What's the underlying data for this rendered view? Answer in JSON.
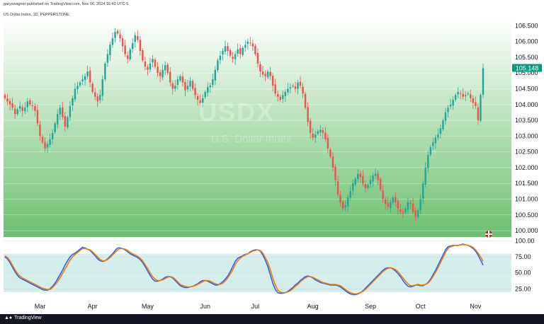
{
  "header": {
    "publisher": "garyswagner published on TradingView.com, Nov 06, 2024 15:43 UTC-5",
    "symbol_line": "US Dollar Index, 1D, PEPPERSTONE"
  },
  "watermark": {
    "symbol": "USDX",
    "name": "U.S. Dollar Index"
  },
  "footer": {
    "brand": "TradingView",
    "logo": "tradingview-logo-icon"
  },
  "colors": {
    "up": "#26a69a",
    "down": "#ef5350",
    "k_line": "#2962ff",
    "d_line": "#f57c00",
    "price_label": "#089981",
    "footer": "#131722"
  },
  "chart_data": [
    {
      "type": "candlestick",
      "title": "",
      "ylim": [
        99.8,
        106.8
      ],
      "y_ticks": [
        "106.500",
        "106.000",
        "105.500",
        "105.000",
        "104.500",
        "104.000",
        "103.500",
        "103.000",
        "102.500",
        "102.000",
        "101.500",
        "101.000",
        "100.500",
        "100.000"
      ],
      "y_tick_values": [
        106.5,
        106.0,
        105.5,
        105.0,
        104.5,
        104.0,
        103.5,
        103.0,
        102.5,
        102.0,
        101.5,
        101.0,
        100.5,
        100.0
      ],
      "x_labels": [
        "Mar",
        "Apr",
        "May",
        "Jun",
        "Jul",
        "Aug",
        "Sep",
        "Oct",
        "Nov"
      ],
      "last_price_label": "105.148",
      "closes": [
        104.2,
        104.1,
        104.0,
        103.9,
        103.7,
        103.85,
        103.95,
        103.8,
        103.9,
        104.1,
        104.0,
        103.95,
        103.8,
        103.4,
        103.0,
        102.8,
        102.6,
        102.75,
        102.9,
        103.1,
        103.4,
        103.7,
        103.9,
        103.6,
        103.3,
        103.6,
        103.95,
        104.2,
        104.5,
        104.6,
        104.7,
        104.8,
        104.9,
        105.05,
        104.7,
        104.4,
        104.25,
        104.1,
        104.3,
        104.8,
        105.3,
        105.6,
        105.9,
        106.1,
        106.3,
        106.25,
        106.1,
        105.85,
        105.6,
        105.45,
        105.75,
        105.95,
        106.2,
        106.05,
        105.7,
        105.4,
        105.2,
        105.1,
        105.3,
        105.45,
        105.2,
        105.0,
        104.9,
        105.1,
        105.25,
        105.0,
        104.7,
        104.5,
        104.6,
        104.8,
        104.9,
        104.7,
        104.45,
        104.6,
        104.75,
        104.5,
        104.3,
        104.15,
        104.05,
        104.2,
        104.4,
        104.55,
        104.6,
        104.8,
        105.1,
        105.4,
        105.55,
        105.7,
        105.85,
        105.7,
        105.55,
        105.45,
        105.6,
        105.75,
        105.6,
        105.8,
        105.9,
        106.0,
        105.95,
        105.85,
        105.6,
        105.3,
        105.05,
        104.95,
        104.9,
        105.05,
        104.9,
        104.6,
        104.35,
        104.25,
        104.15,
        104.3,
        104.4,
        104.5,
        104.55,
        104.6,
        104.5,
        104.7,
        104.6,
        104.35,
        103.9,
        103.45,
        103.1,
        102.95,
        103.05,
        103.15,
        103.2,
        103.1,
        102.9,
        102.6,
        102.35,
        102.0,
        101.6,
        101.15,
        100.9,
        100.7,
        100.8,
        101.05,
        101.25,
        101.5,
        101.65,
        101.8,
        101.7,
        101.5,
        101.35,
        101.45,
        101.6,
        101.75,
        101.8,
        101.6,
        101.3,
        101.0,
        100.85,
        100.75,
        100.9,
        101.05,
        100.9,
        100.7,
        100.6,
        100.55,
        100.7,
        100.9,
        100.85,
        100.6,
        100.45,
        100.65,
        101.0,
        101.5,
        102.0,
        102.4,
        102.65,
        102.8,
        102.95,
        103.05,
        103.25,
        103.5,
        103.75,
        103.9,
        104.0,
        104.15,
        104.3,
        104.4,
        104.35,
        104.25,
        104.3,
        104.35,
        104.2,
        104.05,
        103.95,
        103.5,
        104.3,
        105.15
      ],
      "notes": "closes are approximate daily closes read off the chart (Feb through Nov 6, 2024)"
    },
    {
      "type": "line",
      "title": "",
      "ylim": [
        12,
        104
      ],
      "y_ticks": [
        "100.00",
        "75.00",
        "50.00",
        "25.00"
      ],
      "y_tick_values": [
        100,
        75,
        50,
        25
      ],
      "band": [
        20,
        80
      ],
      "series": [
        {
          "values": [
            75,
            72,
            66,
            59,
            52,
            46,
            42,
            40,
            38,
            36,
            34,
            32,
            30,
            28,
            26,
            24,
            23,
            23,
            25,
            29,
            34,
            40,
            47,
            54,
            62,
            69,
            75,
            79,
            81,
            84,
            87,
            90,
            89,
            87,
            85,
            81,
            77,
            72,
            69,
            68,
            69,
            72,
            76,
            80,
            85,
            89,
            89,
            88,
            86,
            83,
            80,
            78,
            76,
            74,
            71,
            66,
            60,
            53,
            46,
            40,
            37,
            37,
            38,
            40,
            43,
            44,
            44,
            42,
            38,
            34,
            30,
            28,
            27,
            27,
            28,
            29,
            31,
            33,
            36,
            38,
            38,
            37,
            35,
            33,
            31,
            31,
            33,
            36,
            40,
            45,
            52,
            60,
            68,
            73,
            75,
            77,
            79,
            80,
            83,
            85,
            86,
            86,
            84,
            78,
            70,
            60,
            47,
            34,
            24,
            19,
            18,
            18,
            19,
            21,
            24,
            27,
            31,
            34,
            38,
            41,
            44,
            45,
            44,
            42,
            39,
            37,
            35,
            34,
            33,
            32,
            31,
            31,
            31,
            30,
            28,
            25,
            22,
            19,
            17,
            16,
            16,
            17,
            19,
            22,
            26,
            30,
            34,
            38,
            42,
            46,
            50,
            54,
            57,
            58,
            58,
            56,
            53,
            49,
            44,
            38,
            33,
            29,
            28,
            29,
            31,
            31,
            30,
            30,
            32,
            35,
            40,
            47,
            54,
            62,
            70,
            78,
            86,
            91,
            92,
            93,
            93,
            93,
            94,
            95,
            94,
            93,
            91,
            88,
            84,
            78,
            70,
            62
          ],
          "color": "#2962ff"
        },
        {
          "values": [
            77,
            74,
            69,
            62,
            55,
            49,
            45,
            42,
            40,
            38,
            36,
            34,
            32,
            30,
            28,
            26,
            25,
            24,
            24,
            27,
            31,
            36,
            42,
            49,
            56,
            63,
            70,
            75,
            79,
            82,
            85,
            88,
            88,
            87,
            86,
            83,
            79,
            75,
            71,
            69,
            69,
            71,
            74,
            78,
            82,
            86,
            88,
            88,
            87,
            85,
            82,
            80,
            78,
            76,
            73,
            69,
            63,
            57,
            50,
            44,
            40,
            38,
            38,
            39,
            41,
            43,
            44,
            43,
            40,
            36,
            32,
            30,
            29,
            28,
            28,
            29,
            30,
            32,
            34,
            36,
            38,
            38,
            37,
            35,
            33,
            32,
            32,
            34,
            37,
            42,
            48,
            55,
            63,
            69,
            73,
            76,
            78,
            80,
            82,
            84,
            85,
            86,
            85,
            81,
            74,
            66,
            55,
            42,
            31,
            23,
            20,
            19,
            19,
            20,
            22,
            25,
            29,
            32,
            36,
            39,
            42,
            44,
            44,
            43,
            41,
            39,
            37,
            35,
            34,
            33,
            32,
            32,
            32,
            31,
            30,
            27,
            24,
            21,
            19,
            18,
            17,
            18,
            19,
            21,
            24,
            28,
            32,
            36,
            40,
            44,
            48,
            52,
            55,
            57,
            58,
            57,
            55,
            52,
            47,
            42,
            37,
            33,
            30,
            30,
            31,
            32,
            31,
            31,
            32,
            34,
            38,
            44,
            51,
            58,
            66,
            74,
            82,
            88,
            91,
            92,
            93,
            93,
            94,
            94,
            94,
            93,
            92,
            90,
            86,
            81,
            75,
            68
          ],
          "color": "#f57c00"
        }
      ]
    }
  ]
}
